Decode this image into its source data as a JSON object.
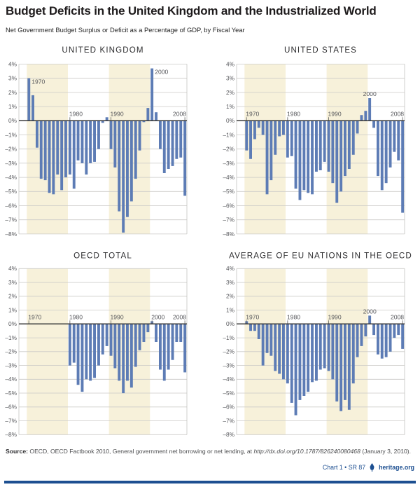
{
  "header": {
    "title": "Budget Deficits in the United Kingdom and the Industrialized World",
    "subtitle": "Net Government Budget Surplus or Deficit as a Percentage of GDP, by Fiscal Year"
  },
  "axis": {
    "ylim": [
      -8,
      4
    ],
    "unit": "percent of GDP",
    "grid": true,
    "y_tick_labels": [
      "4%",
      "3%",
      "2%",
      "1%",
      "0%",
      "–1%",
      "–2%",
      "–3%",
      "–4%",
      "–5%",
      "–6%",
      "–7%",
      "–8%"
    ]
  },
  "chart_data": [
    {
      "id": "united-kingdom",
      "type": "bar",
      "title": "UNITED KINGDOM",
      "start_year": 1970,
      "x_tick_years": [
        1970,
        1980,
        1990,
        2000,
        2008
      ],
      "shaded_year_ranges": [
        [
          1969.5,
          1979.5
        ],
        [
          1989.5,
          1999.5
        ]
      ],
      "values": [
        3.0,
        1.8,
        -1.9,
        -4.1,
        -4.2,
        -5.1,
        -5.2,
        -3.8,
        -4.9,
        -4.0,
        -3.8,
        -4.8,
        -2.8,
        -3.0,
        -3.8,
        -3.0,
        -2.9,
        -2.0,
        -0.15,
        0.25,
        -2.0,
        -3.3,
        -6.4,
        -7.9,
        -6.8,
        -5.7,
        -4.1,
        -2.1,
        -0.1,
        0.9,
        3.7,
        0.6,
        -2.0,
        -3.7,
        -3.4,
        -3.2,
        -2.7,
        -2.6,
        -5.3
      ]
    },
    {
      "id": "united-states",
      "type": "bar",
      "title": "UNITED STATES",
      "start_year": 1970,
      "x_tick_years": [
        1970,
        1980,
        1990,
        2000,
        2008
      ],
      "shaded_year_ranges": [
        [
          1969.5,
          1979.5
        ],
        [
          1989.5,
          1999.5
        ]
      ],
      "values": [
        -2.1,
        -2.7,
        -1.3,
        -0.5,
        -1.0,
        -5.2,
        -4.2,
        -2.4,
        -1.1,
        -1.0,
        -2.6,
        -2.5,
        -4.8,
        -5.6,
        -4.9,
        -5.1,
        -5.2,
        -3.6,
        -3.5,
        -2.9,
        -3.6,
        -4.4,
        -5.8,
        -5.0,
        -3.9,
        -3.4,
        -2.4,
        -0.9,
        0.4,
        0.7,
        1.6,
        -0.5,
        -3.9,
        -4.9,
        -4.4,
        -3.3,
        -2.2,
        -2.8,
        -6.5
      ]
    },
    {
      "id": "oecd-total",
      "type": "bar",
      "title": "OECD TOTAL",
      "start_year": 1980,
      "x_tick_years": [
        1970,
        1980,
        1990,
        2000,
        2008
      ],
      "shaded_year_ranges": [
        [
          1969.5,
          1979.5
        ],
        [
          1989.5,
          1999.5
        ]
      ],
      "values": [
        -3.0,
        -2.8,
        -4.4,
        -4.9,
        -4.0,
        -4.1,
        -3.9,
        -3.0,
        -2.2,
        -1.6,
        -2.3,
        -3.2,
        -4.1,
        -5.0,
        -4.1,
        -4.6,
        -3.1,
        -1.9,
        -1.3,
        -0.6,
        0.2,
        -1.3,
        -3.3,
        -4.1,
        -3.3,
        -2.6,
        -1.3,
        -1.3,
        -3.5
      ]
    },
    {
      "id": "eu-average",
      "type": "bar",
      "title": "AVERAGE OF EU NATIONS IN THE OECD",
      "start_year": 1970,
      "x_tick_years": [
        1970,
        1980,
        1990,
        2000,
        2008
      ],
      "shaded_year_ranges": [
        [
          1969.5,
          1979.5
        ],
        [
          1989.5,
          1999.5
        ]
      ],
      "values": [
        0.2,
        -0.5,
        -0.5,
        -1.1,
        -3.0,
        -2.1,
        -2.3,
        -3.4,
        -3.6,
        -4.0,
        -4.3,
        -5.7,
        -6.6,
        -5.5,
        -5.2,
        -4.9,
        -4.2,
        -4.1,
        -3.3,
        -3.2,
        -3.4,
        -4.0,
        -5.6,
        -6.3,
        -5.5,
        -6.2,
        -4.3,
        -2.4,
        -1.6,
        -0.9,
        0.6,
        -0.8,
        -2.2,
        -2.5,
        -2.4,
        -2.0,
        -1.0,
        -0.8,
        -1.8
      ]
    }
  ],
  "footer": {
    "source_label": "Source:",
    "source_text": " OECD, OECD Factbook 2010, General government net borrowing or net lending, at ",
    "source_link": "http://dx.doi.org/10.1787/826240080468",
    "source_suffix": " (January 3, 2010).",
    "chart_ref": "Chart 1 • SR 87",
    "site": "heritage.org"
  },
  "colors": {
    "bar": "#5d7cb5",
    "decade_band": "#f7f1da",
    "gridline": "#cbcac7",
    "plot_border": "#c4c3c0",
    "zero_line": "#3a3a3a",
    "tick": "#6a6a6a",
    "heritage_blue": "#1d4f91"
  }
}
